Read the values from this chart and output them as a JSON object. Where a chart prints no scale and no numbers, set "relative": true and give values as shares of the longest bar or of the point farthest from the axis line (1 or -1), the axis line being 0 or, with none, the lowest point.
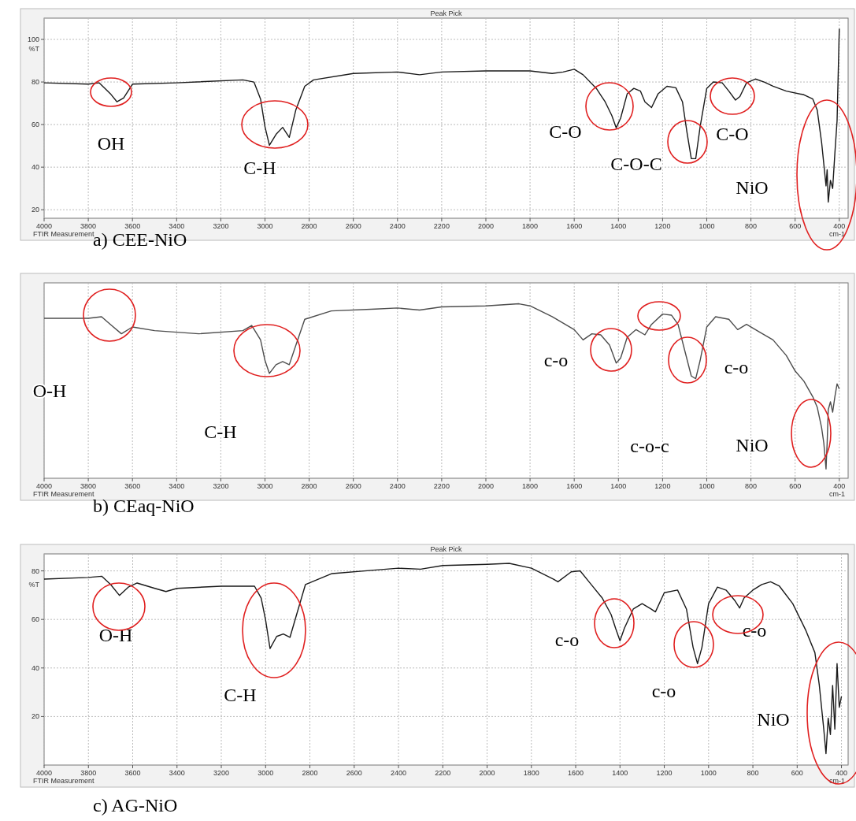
{
  "chart_data": [
    {
      "type": "line",
      "title": "Peak Pick",
      "xlabel": "cm-1",
      "ylabel": "%T",
      "xlim": [
        4000,
        360
      ],
      "ylim": [
        16,
        110
      ],
      "xticks": [
        4000,
        3800,
        3600,
        3400,
        3200,
        3000,
        2800,
        2600,
        2400,
        2200,
        2000,
        1800,
        1600,
        1400,
        1200,
        1000,
        800,
        600,
        400
      ],
      "yticks": [
        20,
        40,
        60,
        80,
        100
      ],
      "grid": true,
      "annotations": [
        "a) CEE-NiO",
        "FTIR Measurement",
        "OH",
        "C-H",
        "C-O",
        "C-O-C",
        "C-O",
        "NiO"
      ],
      "series": [
        {
          "color": "#1a1a1a",
          "x": [
            4000,
            3800,
            3750,
            3700,
            3670,
            3640,
            3600,
            3400,
            3100,
            3050,
            3020,
            3000,
            2980,
            2950,
            2920,
            2890,
            2860,
            2820,
            2780,
            2600,
            2400,
            2300,
            2200,
            2000,
            1800,
            1700,
            1650,
            1600,
            1560,
            1500,
            1460,
            1430,
            1410,
            1390,
            1360,
            1330,
            1300,
            1280,
            1250,
            1220,
            1180,
            1140,
            1110,
            1090,
            1070,
            1050,
            1030,
            1000,
            970,
            930,
            900,
            870,
            850,
            820,
            780,
            740,
            700,
            640,
            560,
            520,
            500,
            480,
            470,
            460,
            455,
            450,
            440,
            430,
            420,
            410,
            400
          ],
          "values": [
            79.6,
            79,
            79.6,
            74.5,
            70.7,
            72.5,
            79,
            79.6,
            81,
            80,
            72,
            59,
            50.3,
            55.4,
            58.7,
            54,
            67,
            78,
            81,
            84,
            84.7,
            83.4,
            84.7,
            85.2,
            85.2,
            84,
            84.7,
            86,
            83.4,
            77,
            70.7,
            64.3,
            58.5,
            63,
            74.5,
            77,
            75.7,
            70.7,
            68,
            74.5,
            78,
            77.3,
            70.7,
            56.7,
            44,
            44,
            59,
            77,
            80,
            79.6,
            75.7,
            71.5,
            73.2,
            79.6,
            81.4,
            80,
            78,
            75.7,
            74,
            72,
            66.9,
            51.6,
            41.4,
            31.2,
            38.8,
            23.6,
            33.8,
            30,
            46.5,
            61.8,
            105
          ]
        }
      ]
    },
    {
      "type": "line",
      "relative": true,
      "xlim": [
        4000,
        360
      ],
      "xticks": [
        4000,
        3800,
        3600,
        3400,
        3200,
        3000,
        2800,
        2600,
        2400,
        2200,
        2000,
        1800,
        1600,
        1400,
        1200,
        1000,
        800,
        600,
        400
      ],
      "xlabel": "cm-1",
      "grid": true,
      "annotations": [
        "b) CEaq-NiO",
        "FTIR Measurement",
        "O-H",
        "C-H",
        "c-o",
        "c-o",
        "c-o-c",
        "NiO"
      ],
      "series": [
        {
          "color": "#4d4d4d",
          "x": [
            4000,
            3800,
            3740,
            3700,
            3650,
            3600,
            3500,
            3300,
            3100,
            3060,
            3020,
            3000,
            2980,
            2950,
            2920,
            2890,
            2860,
            2820,
            2700,
            2500,
            2400,
            2300,
            2200,
            2000,
            1850,
            1800,
            1700,
            1600,
            1560,
            1520,
            1480,
            1440,
            1410,
            1390,
            1360,
            1320,
            1280,
            1250,
            1200,
            1160,
            1130,
            1100,
            1070,
            1050,
            1030,
            1000,
            960,
            900,
            860,
            820,
            760,
            700,
            640,
            600,
            560,
            520,
            500,
            480,
            470,
            460,
            455,
            450,
            440,
            430,
            420,
            410,
            400
          ],
          "values": [
            0.917,
            0.917,
            0.926,
            0.882,
            0.828,
            0.867,
            0.846,
            0.828,
            0.846,
            0.876,
            0.793,
            0.675,
            0.601,
            0.651,
            0.669,
            0.651,
            0.763,
            0.911,
            0.959,
            0.97,
            0.976,
            0.964,
            0.982,
            0.988,
            1,
            0.988,
            0.926,
            0.852,
            0.793,
            0.828,
            0.822,
            0.763,
            0.66,
            0.689,
            0.808,
            0.852,
            0.822,
            0.882,
            0.941,
            0.935,
            0.882,
            0.734,
            0.586,
            0.571,
            0.675,
            0.867,
            0.926,
            0.911,
            0.852,
            0.882,
            0.837,
            0.793,
            0.704,
            0.615,
            0.556,
            0.467,
            0.408,
            0.29,
            0.201,
            0.053,
            0.201,
            0.393,
            0.438,
            0.379,
            0.467,
            0.541,
            0.512
          ]
        }
      ]
    },
    {
      "type": "line",
      "title": "Peak Pick",
      "xlabel": "cm-1",
      "ylabel": "%T",
      "xlim": [
        4000,
        370
      ],
      "ylim": [
        0,
        87
      ],
      "xticks": [
        4000,
        3800,
        3600,
        3400,
        3200,
        3000,
        2800,
        2600,
        2400,
        2200,
        2000,
        1800,
        1600,
        1400,
        1200,
        1000,
        800,
        600,
        400
      ],
      "yticks": [
        20,
        40,
        60,
        80
      ],
      "grid": true,
      "annotations": [
        "c) AG-NiO",
        "FTIR Measurement",
        "O-H",
        "C-H",
        "c-o",
        "c-o",
        "c-o",
        "NiO"
      ],
      "series": [
        {
          "color": "#1a1a1a",
          "x": [
            4000,
            3800,
            3740,
            3700,
            3660,
            3620,
            3580,
            3500,
            3450,
            3400,
            3200,
            3050,
            3020,
            3000,
            2980,
            2950,
            2920,
            2890,
            2860,
            2820,
            2700,
            2500,
            2400,
            2300,
            2200,
            2000,
            1900,
            1800,
            1700,
            1680,
            1620,
            1580,
            1540,
            1480,
            1440,
            1420,
            1400,
            1380,
            1340,
            1300,
            1260,
            1240,
            1200,
            1140,
            1100,
            1070,
            1050,
            1030,
            1000,
            960,
            920,
            880,
            860,
            840,
            800,
            760,
            720,
            680,
            620,
            560,
            520,
            500,
            480,
            470,
            460,
            450,
            440,
            430,
            420,
            410,
            400
          ],
          "values": [
            76.6,
            77.3,
            77.8,
            74.4,
            69.9,
            73.3,
            75,
            72.8,
            71.5,
            72.8,
            73.7,
            73.7,
            68.8,
            59.8,
            48,
            53,
            54,
            52.6,
            62,
            74.4,
            78.9,
            80.4,
            81.1,
            80.7,
            82.2,
            82.7,
            83.1,
            81.1,
            76.6,
            75.5,
            79.6,
            80,
            75.5,
            68.8,
            62,
            56.4,
            51.2,
            56.4,
            64.3,
            66.5,
            64.3,
            63.1,
            71,
            72.1,
            64.3,
            48.5,
            41.8,
            48.5,
            66.5,
            73.3,
            72,
            67.6,
            64.7,
            68.8,
            72.1,
            74.4,
            75.5,
            73.7,
            66.5,
            55.3,
            46.3,
            32.8,
            14.8,
            4.7,
            19.3,
            12.6,
            32.8,
            14.8,
            41.8,
            23.8,
            28.3
          ]
        }
      ]
    }
  ]
}
